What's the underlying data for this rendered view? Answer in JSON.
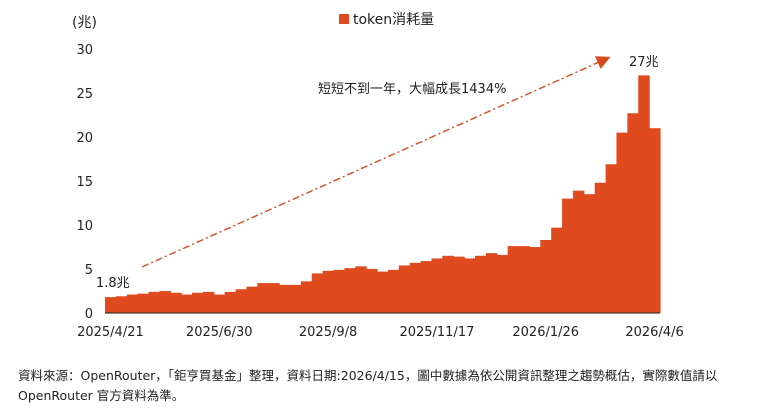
{
  "chart_data": {
    "type": "bar",
    "ylabel": "(兆)",
    "ylim": [
      0,
      30
    ],
    "yticks": [
      0,
      5,
      10,
      15,
      20,
      25,
      30
    ],
    "grid": false,
    "legend": {
      "position": "top-center",
      "label": "token消耗量",
      "color": "#e04a1f"
    },
    "bar_color": "#e04a1f",
    "x_tick_labels": [
      "2025/4/21",
      "2025/6/30",
      "2025/9/8",
      "2025/11/17",
      "2026/1/26",
      "2026/4/6"
    ],
    "x_tick_indices": [
      0,
      10,
      20,
      30,
      40,
      50
    ],
    "series": [
      {
        "name": "token消耗量",
        "values": [
          1.8,
          1.9,
          2.1,
          2.2,
          2.4,
          2.5,
          2.3,
          2.1,
          2.3,
          2.4,
          2.1,
          2.4,
          2.7,
          3.0,
          3.4,
          3.4,
          3.2,
          3.2,
          3.6,
          4.5,
          4.8,
          4.9,
          5.1,
          5.3,
          5.0,
          4.7,
          4.9,
          5.4,
          5.7,
          5.9,
          6.2,
          6.5,
          6.4,
          6.2,
          6.5,
          6.8,
          6.6,
          7.6,
          7.6,
          7.5,
          8.3,
          9.7,
          13.0,
          13.9,
          13.5,
          14.8,
          16.9,
          20.5,
          22.7,
          27.0,
          21.0
        ]
      }
    ],
    "annotations": {
      "start_label": "1.8兆",
      "end_label": "27兆",
      "growth_text": "短短不到一年，大幅成長1434%"
    }
  },
  "source_note": "資料來源：OpenRouter，「鉅亨買基金」整理，資料日期:2026/4/15，圖中數據為依公開資訊整理之趨勢概估，實際數值請以OpenRouter 官方資料為準。"
}
